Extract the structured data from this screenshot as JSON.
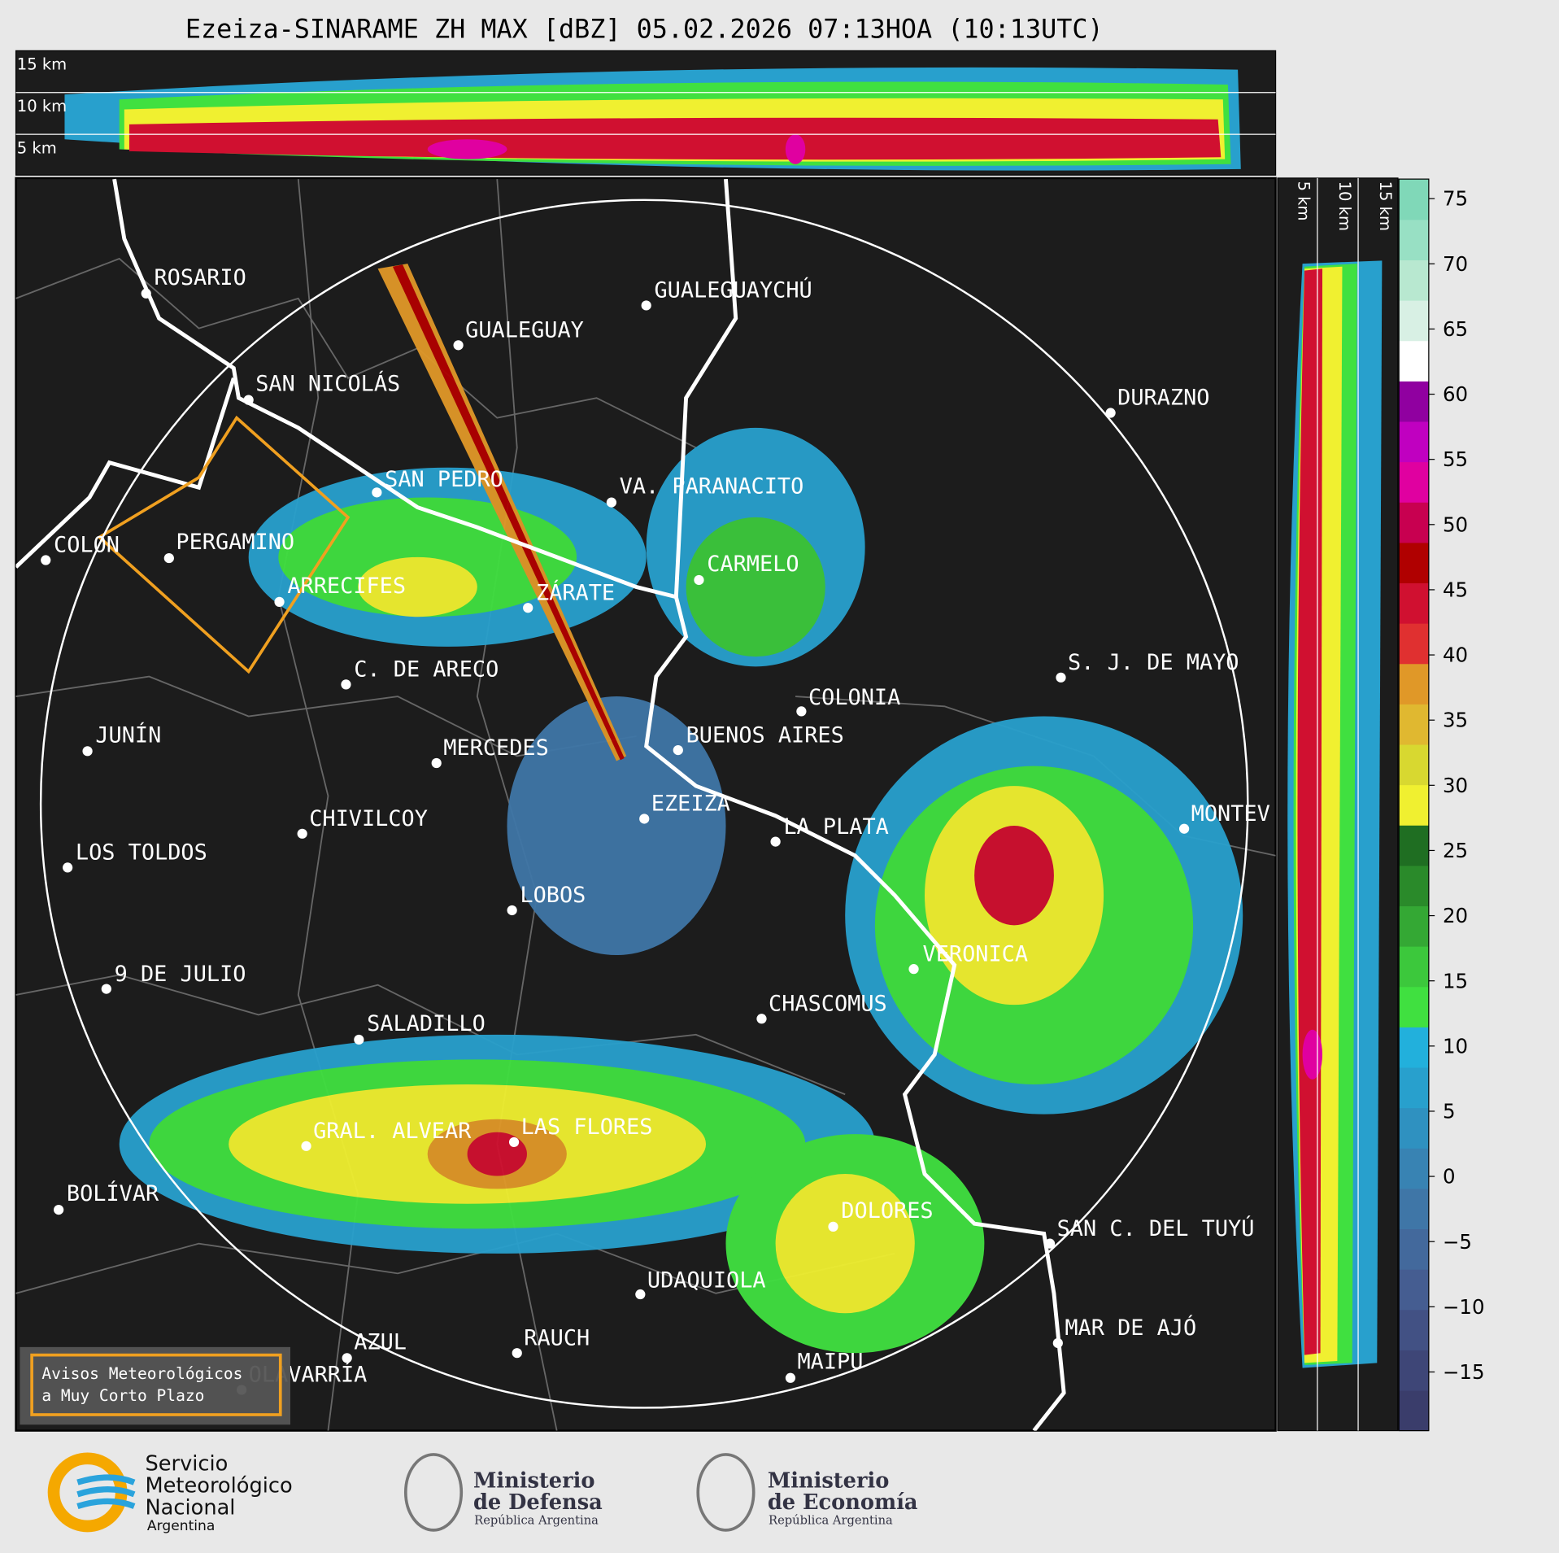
{
  "header": {
    "title": "Ezeiza-SINARAME ZH MAX [dBZ] 05.02.2026 07:13HOA (10:13UTC)"
  },
  "top_section": {
    "labels": [
      "15 km",
      "10 km",
      "5 km"
    ]
  },
  "side_section": {
    "labels": [
      "5 km",
      "10 km",
      "15 km"
    ]
  },
  "cities": [
    "ROSARIO",
    "GUALEGUAYCHÚ",
    "GUALEGUAY",
    "SAN NICOLÁS",
    "DURAZNO",
    "SAN PEDRO",
    "VA. PARANACITO",
    "COLON",
    "PERGAMINO",
    "CARMELO",
    "ARRECIFES",
    "ZÁRATE",
    "S. J. DE MAYO",
    "C. DE ARECO",
    "COLONIA",
    "BUENOS AIRES",
    "JUNÍN",
    "MERCEDES",
    "EZEIZA",
    "MONTEV",
    "CHIVILCOY",
    "LA PLATA",
    "LOS TOLDOS",
    "LOBOS",
    "VERONICA",
    "9 DE JULIO",
    "CHASCOMUS",
    "SALADILLO",
    "LAS FLORES",
    "GRAL. ALVEAR",
    "BOLÍVAR",
    "DOLORES",
    "SAN C. DEL TUYÚ",
    "UDAQUIOLA",
    "MAR DE AJÓ",
    "RAUCH",
    "AZUL",
    "OLAVARRÍA",
    "MAIPU"
  ],
  "warning_box": {
    "lines": [
      "Avisos Meteorológicos",
      "a Muy Corto Plazo"
    ]
  },
  "colorbar": {
    "range": [
      -19.5,
      76.5
    ],
    "ticks": [
      {
        "value": -15,
        "label": "−15"
      },
      {
        "value": -10,
        "label": "−10"
      },
      {
        "value": -5,
        "label": "−5"
      },
      0,
      5,
      10,
      15,
      20,
      25,
      30,
      35,
      40,
      45,
      50,
      55,
      60,
      65,
      70,
      75
    ],
    "colors": [
      "#3a3d6b",
      "#3e4677",
      "#425184",
      "#455d91",
      "#43699c",
      "#3f76a7",
      "#3883b3",
      "#2f91c0",
      "#28a0cd",
      "#22b0dc",
      "#40e040",
      "#3cc83c",
      "#34a834",
      "#2a8a2a",
      "#1f6e22",
      "#f0f030",
      "#d8d830",
      "#e0b830",
      "#e09828",
      "#e03030",
      "#d01030",
      "#b00000",
      "#c80050",
      "#e000a0",
      "#c000c0",
      "#9000a0",
      "#ffffff",
      "#d8f0e4",
      "#b8e8d0",
      "#98e0c4",
      "#80d8b8"
    ]
  },
  "logos": {
    "smn": [
      "Servicio",
      "Meteorológico",
      "Nacional",
      "Argentina"
    ],
    "defensa": [
      "Ministerio",
      "de Defensa",
      "República Argentina"
    ],
    "economia": [
      "Ministerio",
      "de Economía",
      "República Argentina"
    ]
  }
}
